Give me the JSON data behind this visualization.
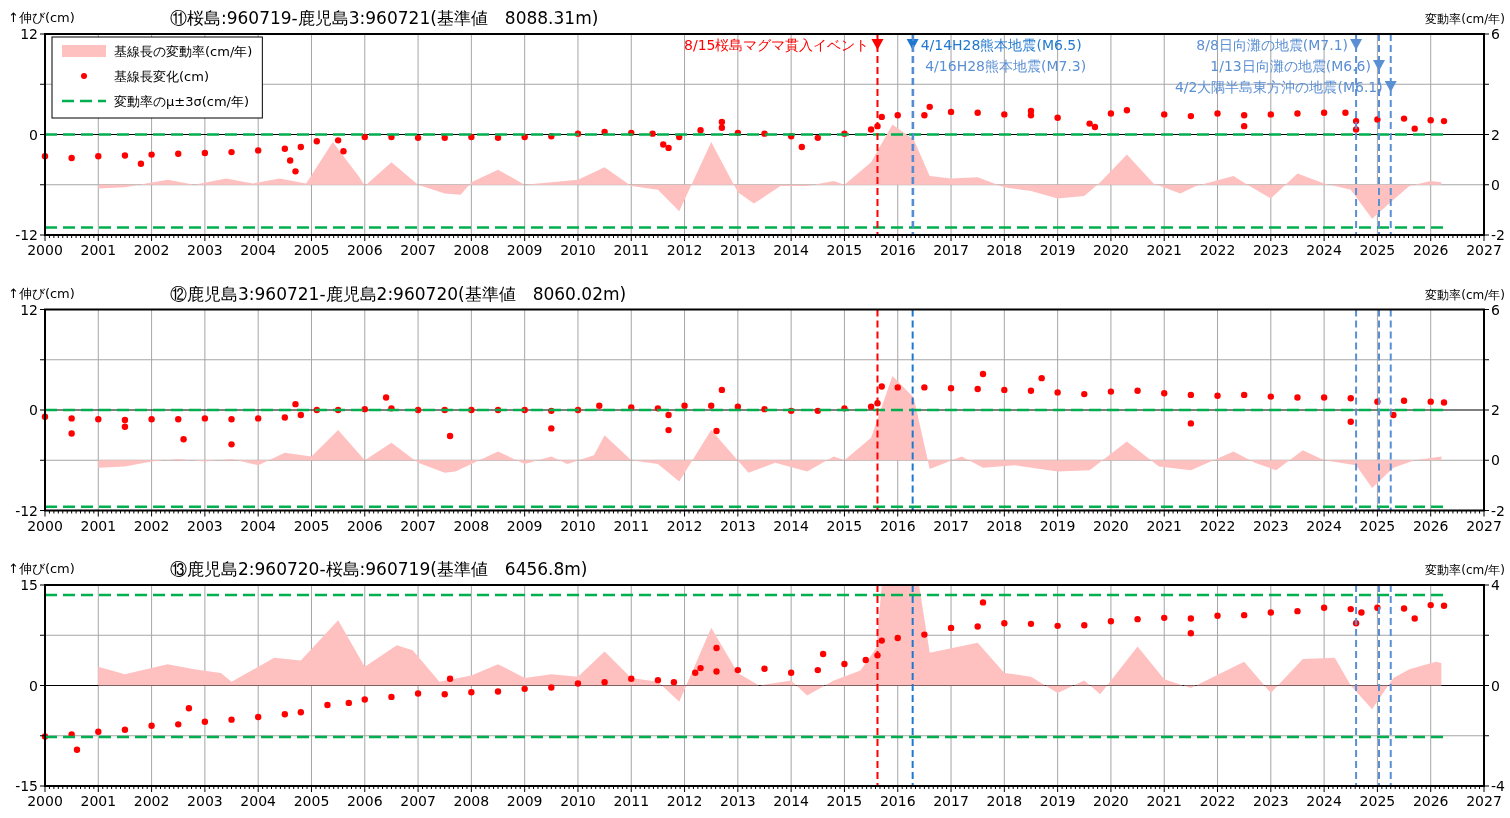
{
  "chart_data": [
    {
      "type": "scatter",
      "title": "⑪桜島:960719-鹿児島3:960721(基準値　8088.31m)",
      "ylabel": "↑伸び(cm)",
      "y2label": "変動率(cm/年)",
      "xlim": [
        2000,
        2027
      ],
      "xticks": [
        2000,
        2001,
        2002,
        2003,
        2004,
        2005,
        2006,
        2007,
        2008,
        2009,
        2010,
        2011,
        2012,
        2013,
        2014,
        2015,
        2016,
        2017,
        2018,
        2019,
        2020,
        2021,
        2022,
        2023,
        2024,
        2025,
        2026,
        2027
      ],
      "ylim": [
        -12,
        12
      ],
      "yticks": [
        -12,
        {
          "value": -6,
          "label": null
        },
        0,
        {
          "value": 6,
          "label": null
        },
        12
      ],
      "y2lim": [
        -2,
        6
      ],
      "y2ticks": [
        -2,
        0,
        2,
        {
          "value": 4,
          "label": null
        },
        6
      ],
      "grid": true,
      "legend": "top left",
      "series": [
        {
          "name": "基線長の変動率(cm/年)",
          "type": "area",
          "axis": "y2",
          "color": "#ffc0c0",
          "x": [
            2001.0,
            2001.5,
            2002.3,
            2002.8,
            2003.4,
            2003.9,
            2004.4,
            2004.9,
            2005.4,
            2005.9,
            2006.0,
            2006.5,
            2007.0,
            2007.5,
            2007.8,
            2008.0,
            2008.5,
            2009.0,
            2009.5,
            2010.0,
            2010.5,
            2011.0,
            2011.5,
            2011.9,
            2012.5,
            2013.0,
            2013.3,
            2013.8,
            2014.3,
            2014.8,
            2015.0,
            2015.5,
            2015.9,
            2016.3,
            2016.6,
            2017.0,
            2017.5,
            2018.0,
            2018.5,
            2019.0,
            2019.5,
            2019.8,
            2020.3,
            2020.8,
            2021.3,
            2021.6,
            2022.3,
            2022.6,
            2023.0,
            2023.5,
            2024.0,
            2024.5,
            2024.9,
            2025.3,
            2025.6,
            2026.0,
            2026.2
          ],
          "values": [
            -0.15,
            -0.1,
            0.2,
            0.0,
            0.25,
            0.05,
            0.25,
            0.05,
            1.7,
            0.3,
            -0.05,
            0.9,
            0.0,
            -0.35,
            -0.4,
            0.1,
            0.6,
            0.0,
            0.1,
            0.2,
            0.7,
            -0.05,
            -0.2,
            -1.05,
            1.7,
            -0.3,
            -0.75,
            -0.05,
            -0.05,
            0.15,
            0.0,
            0.9,
            2.4,
            1.8,
            0.35,
            0.25,
            0.3,
            -0.1,
            -0.25,
            -0.55,
            -0.45,
            0.1,
            1.2,
            0.05,
            -0.35,
            -0.05,
            0.35,
            -0.05,
            -0.55,
            0.45,
            0.05,
            -0.2,
            -1.35,
            -0.6,
            -0.05,
            0.15,
            0.1
          ]
        },
        {
          "name": "基線長変化(cm)",
          "marker": "circle",
          "color": "#ff0000",
          "x": [
            2000.0,
            2000.5,
            2001.0,
            2001.5,
            2002.0,
            2002.5,
            2003.0,
            2003.5,
            2004.0,
            2004.5,
            2004.8,
            2005.1,
            2005.5,
            2006.0,
            2006.5,
            2007.0,
            2007.5,
            2008.0,
            2008.5,
            2009.0,
            2009.5,
            2010.0,
            2010.5,
            2011.0,
            2011.4,
            2011.6,
            2011.9,
            2012.3,
            2012.7,
            2013.0,
            2013.5,
            2014.0,
            2014.5,
            2015.0,
            2015.5,
            2015.62,
            2015.7,
            2016.0,
            2016.5,
            2017.0,
            2017.5,
            2018.0,
            2018.5,
            2019.0,
            2019.6,
            2020.0,
            2020.3,
            2021.0,
            2021.5,
            2022.0,
            2022.5,
            2023.0,
            2023.5,
            2024.0,
            2024.4,
            2024.6,
            2025.0,
            2025.5,
            2026.0,
            2026.25,
            2001.8,
            2004.7,
            2004.6,
            2005.6,
            2011.7,
            2012.7,
            2014.2,
            2016.6,
            2018.5,
            2019.7,
            2022.5,
            2024.6,
            2025.7
          ],
          "values": [
            -2.6,
            -2.8,
            -2.6,
            -2.5,
            -2.4,
            -2.3,
            -2.2,
            -2.1,
            -1.9,
            -1.7,
            -1.5,
            -0.8,
            -0.7,
            -0.3,
            -0.3,
            -0.4,
            -0.4,
            -0.3,
            -0.4,
            -0.3,
            -0.2,
            0.1,
            0.3,
            0.2,
            0.1,
            -1.2,
            -0.3,
            0.5,
            0.8,
            0.2,
            0.1,
            -0.2,
            -0.4,
            0.1,
            0.6,
            1.0,
            2.1,
            2.3,
            2.3,
            2.7,
            2.6,
            2.4,
            2.3,
            2.0,
            1.3,
            2.5,
            2.9,
            2.4,
            2.2,
            2.5,
            2.3,
            2.4,
            2.5,
            2.6,
            2.6,
            1.6,
            1.8,
            1.9,
            1.7,
            1.6,
            -3.5,
            -4.4,
            -3.1,
            -2.0,
            -1.6,
            1.5,
            -1.5,
            3.3,
            2.8,
            0.9,
            1.0,
            0.6,
            0.7
          ]
        },
        {
          "name": "変動率のμ±3σ(cm/年)",
          "type": "line",
          "axis": "y2",
          "line_style": "dashed",
          "color": "#00b050",
          "x": [
            2000,
            2026.25
          ],
          "values": [
            2.0,
            2.0
          ]
        },
        {
          "type": "line",
          "axis": "y2",
          "line_style": "dashed",
          "color": "#00b050",
          "x": [
            2000,
            2026.25
          ],
          "values": [
            -1.7,
            -1.7
          ]
        }
      ],
      "ref_lines": [
        {
          "axis": "x",
          "value": 2015.62,
          "label": "8/15桜島マグマ貫入イベント",
          "color": "#ff0000",
          "line_style": "dashed"
        },
        {
          "axis": "x",
          "value": 2016.28,
          "label": "4/14H28熊本地震(M6.5)",
          "color": "#1f78d0",
          "line_style": "dashed"
        },
        {
          "axis": "x",
          "value": 2016.29,
          "label": "4/16H28熊本地震(M7.3)",
          "color": "#5b8fd4",
          "line_style": "dashed"
        },
        {
          "axis": "x",
          "value": 2024.6,
          "label": "8/8日向灘の地震(M7.1)",
          "color": "#5b8fd4",
          "line_style": "dashed"
        },
        {
          "axis": "x",
          "value": 2025.03,
          "label": "1/13日向灘の地震(M6.6)",
          "color": "#5b8fd4",
          "line_style": "dashed"
        },
        {
          "axis": "x",
          "value": 2025.25,
          "label": "4/2大隅半島東方沖の地震(M6.1)",
          "color": "#5b8fd4",
          "line_style": "dashed"
        }
      ]
    },
    {
      "type": "scatter",
      "title": "⑫鹿児島3:960721-鹿児島2:960720(基準値　8060.02m)",
      "ylabel": "↑伸び(cm)",
      "y2label": "変動率(cm/年)",
      "xlim": [
        2000,
        2027
      ],
      "xticks": [
        2000,
        2001,
        2002,
        2003,
        2004,
        2005,
        2006,
        2007,
        2008,
        2009,
        2010,
        2011,
        2012,
        2013,
        2014,
        2015,
        2016,
        2017,
        2018,
        2019,
        2020,
        2021,
        2022,
        2023,
        2024,
        2025,
        2026,
        2027
      ],
      "ylim": [
        -12,
        12
      ],
      "yticks": [
        -12,
        {
          "value": -6,
          "label": null
        },
        0,
        {
          "value": 6,
          "label": null
        },
        12
      ],
      "y2lim": [
        -2,
        6
      ],
      "y2ticks": [
        -2,
        0,
        2,
        {
          "value": 4,
          "label": null
        },
        6
      ],
      "grid": true,
      "series": [
        {
          "type": "area",
          "axis": "y2",
          "color": "#ffc0c0",
          "x": [
            2001.0,
            2001.5,
            2002.0,
            2002.5,
            2003.0,
            2003.5,
            2004.0,
            2004.5,
            2005.0,
            2005.5,
            2006.0,
            2006.5,
            2007.0,
            2007.5,
            2007.7,
            2008.5,
            2009.0,
            2009.5,
            2009.8,
            2010.3,
            2010.5,
            2011.0,
            2011.5,
            2011.9,
            2012.5,
            2013.2,
            2013.7,
            2014.3,
            2014.8,
            2015.0,
            2015.5,
            2015.9,
            2016.3,
            2016.6,
            2017.2,
            2017.6,
            2018.2,
            2019.0,
            2019.6,
            2020.3,
            2020.9,
            2021.5,
            2022.3,
            2022.7,
            2023.1,
            2023.6,
            2024.0,
            2024.6,
            2024.9,
            2025.3,
            2025.7,
            2026.2
          ],
          "values": [
            -0.3,
            -0.25,
            -0.05,
            0.05,
            -0.05,
            0.05,
            -0.2,
            0.3,
            0.15,
            1.2,
            0.0,
            0.7,
            -0.1,
            -0.5,
            -0.45,
            0.35,
            -0.15,
            0.15,
            -0.15,
            0.2,
            1.0,
            0.0,
            -0.15,
            -0.85,
            1.2,
            -0.5,
            -0.1,
            -0.45,
            0.15,
            0.0,
            0.9,
            3.35,
            2.5,
            -0.35,
            0.15,
            -0.3,
            -0.2,
            -0.45,
            -0.4,
            0.75,
            -0.25,
            -0.4,
            0.35,
            -0.1,
            -0.4,
            0.4,
            0.0,
            -0.2,
            -1.1,
            -0.3,
            0.0,
            0.15
          ]
        },
        {
          "marker": "circle",
          "color": "#ff0000",
          "x": [
            2000.0,
            2000.5,
            2001.0,
            2001.5,
            2002.0,
            2002.5,
            2003.0,
            2003.5,
            2004.0,
            2004.5,
            2004.8,
            2005.1,
            2005.5,
            2006.0,
            2006.5,
            2007.0,
            2007.5,
            2008.0,
            2008.5,
            2009.0,
            2009.5,
            2010.0,
            2010.4,
            2011.0,
            2011.5,
            2011.7,
            2012.0,
            2012.5,
            2013.0,
            2013.5,
            2014.0,
            2014.5,
            2015.0,
            2015.5,
            2015.62,
            2015.7,
            2016.0,
            2016.5,
            2017.0,
            2017.5,
            2018.0,
            2018.5,
            2019.0,
            2019.5,
            2020.0,
            2020.5,
            2021.0,
            2021.5,
            2022.0,
            2022.5,
            2023.0,
            2023.5,
            2024.0,
            2024.5,
            2025.0,
            2025.5,
            2026.0,
            2026.25,
            2000.5,
            2001.5,
            2002.6,
            2003.5,
            2004.7,
            2006.4,
            2007.6,
            2009.5,
            2011.7,
            2012.7,
            2012.6,
            2017.6,
            2018.7,
            2021.5,
            2024.5,
            2025.3
          ],
          "values": [
            -0.8,
            -1.0,
            -1.1,
            -1.2,
            -1.1,
            -1.1,
            -1.0,
            -1.1,
            -1.0,
            -0.9,
            -0.6,
            0.0,
            0.0,
            0.1,
            0.2,
            0.0,
            0.0,
            0.0,
            0.0,
            0.0,
            -0.1,
            0.0,
            0.5,
            0.3,
            0.2,
            -0.6,
            0.5,
            0.5,
            0.4,
            0.1,
            -0.1,
            -0.1,
            0.2,
            0.4,
            0.8,
            2.8,
            2.7,
            2.7,
            2.6,
            2.5,
            2.4,
            2.3,
            2.1,
            1.9,
            2.2,
            2.3,
            2.0,
            1.8,
            1.7,
            1.8,
            1.6,
            1.5,
            1.5,
            1.4,
            1.0,
            1.1,
            1.0,
            0.9,
            -2.8,
            -2.0,
            -3.5,
            -4.1,
            0.7,
            1.5,
            -3.1,
            -2.2,
            -2.4,
            2.4,
            -2.5,
            4.3,
            3.8,
            -1.6,
            -1.4,
            -0.6
          ]
        },
        {
          "type": "line",
          "axis": "y2",
          "line_style": "dashed",
          "color": "#00b050",
          "x": [
            2000,
            2026.25
          ],
          "values": [
            2.0,
            2.0
          ]
        },
        {
          "type": "line",
          "axis": "y2",
          "line_style": "dashed",
          "color": "#00b050",
          "x": [
            2000,
            2026.25
          ],
          "values": [
            -1.85,
            -1.85
          ]
        }
      ],
      "ref_lines": [
        {
          "axis": "x",
          "value": 2015.62,
          "color": "#ff0000",
          "line_style": "dashed"
        },
        {
          "axis": "x",
          "value": 2016.28,
          "color": "#1f78d0",
          "line_style": "dashed"
        },
        {
          "axis": "x",
          "value": 2024.6,
          "color": "#5b8fd4",
          "line_style": "dashed"
        },
        {
          "axis": "x",
          "value": 2025.03,
          "color": "#5b8fd4",
          "line_style": "dashed"
        },
        {
          "axis": "x",
          "value": 2025.25,
          "color": "#5b8fd4",
          "line_style": "dashed"
        }
      ]
    },
    {
      "type": "scatter",
      "title": "⑬鹿児島2:960720-桜島:960719(基準値　6456.8m)",
      "ylabel": "↑伸び(cm)",
      "y2label": "変動率(cm/年)",
      "xlim": [
        2000,
        2027
      ],
      "xticks": [
        2000,
        2001,
        2002,
        2003,
        2004,
        2005,
        2006,
        2007,
        2008,
        2009,
        2010,
        2011,
        2012,
        2013,
        2014,
        2015,
        2016,
        2017,
        2018,
        2019,
        2020,
        2021,
        2022,
        2023,
        2024,
        2025,
        2026,
        2027
      ],
      "ylim": [
        -15,
        15
      ],
      "yticks": [
        -15,
        {
          "value": -7.5,
          "label": null
        },
        0,
        {
          "value": 7.5,
          "label": null
        },
        15
      ],
      "y2lim": [
        -4,
        4
      ],
      "y2ticks": [
        -4,
        {
          "value": -2,
          "label": null
        },
        0,
        {
          "value": 2,
          "label": null
        },
        4
      ],
      "grid": true,
      "series": [
        {
          "type": "area",
          "axis": "y2",
          "color": "#ffc0c0",
          "x": [
            2001.0,
            2001.5,
            2002.3,
            2002.8,
            2003.3,
            2003.5,
            2004.3,
            2004.8,
            2005.5,
            2006.0,
            2006.6,
            2006.9,
            2007.4,
            2008.0,
            2008.5,
            2009.0,
            2009.5,
            2010.0,
            2010.5,
            2011.0,
            2011.5,
            2011.9,
            2012.5,
            2013.0,
            2013.4,
            2014.0,
            2014.3,
            2014.8,
            2015.3,
            2015.6,
            2015.7,
            2016.4,
            2016.6,
            2017.5,
            2018.0,
            2018.5,
            2019.0,
            2019.5,
            2019.8,
            2020.5,
            2021.0,
            2021.5,
            2022.5,
            2023.0,
            2023.6,
            2024.2,
            2024.5,
            2024.9,
            2025.3,
            2025.6,
            2026.1,
            2026.2
          ],
          "values": [
            0.75,
            0.45,
            0.85,
            0.65,
            0.5,
            0.15,
            1.1,
            1.0,
            2.6,
            0.75,
            1.6,
            1.4,
            0.15,
            0.4,
            0.85,
            0.3,
            0.45,
            0.35,
            1.35,
            0.3,
            0.15,
            -0.65,
            2.3,
            0.5,
            0.0,
            0.2,
            -0.4,
            0.2,
            0.6,
            1.5,
            4.0,
            4.0,
            1.3,
            1.7,
            0.5,
            0.35,
            -0.3,
            0.2,
            -0.35,
            1.55,
            0.25,
            -0.1,
            0.95,
            -0.3,
            1.05,
            1.1,
            0.0,
            -0.95,
            0.3,
            0.65,
            0.95,
            0.9
          ]
        },
        {
          "marker": "circle",
          "color": "#ff0000",
          "x": [
            2000,
            2000.5,
            2001,
            2001.5,
            2002,
            2002.5,
            2003,
            2003.5,
            2004,
            2004.5,
            2004.8,
            2005.3,
            2005.7,
            2006,
            2006.5,
            2007,
            2007.5,
            2008,
            2008.5,
            2009,
            2009.5,
            2010,
            2010.5,
            2011,
            2011.5,
            2011.8,
            2012.2,
            2012.6,
            2013,
            2013.5,
            2014,
            2014.5,
            2015,
            2015.4,
            2015.62,
            2015.7,
            2016,
            2016.5,
            2017,
            2017.5,
            2018,
            2018.5,
            2019,
            2019.5,
            2020,
            2020.5,
            2021,
            2021.5,
            2022,
            2022.5,
            2023,
            2023.5,
            2024,
            2024.5,
            2024.7,
            2025,
            2025.5,
            2026,
            2026.25,
            2000.6,
            2002.7,
            2007.6,
            2012.6,
            2012.3,
            2014.6,
            2017.6,
            2021.5,
            2024.6,
            2025.7
          ],
          "values": [
            -7.6,
            -7.3,
            -6.9,
            -6.6,
            -6.0,
            -5.8,
            -5.4,
            -5.1,
            -4.7,
            -4.3,
            -4.0,
            -2.9,
            -2.6,
            -2.1,
            -1.7,
            -1.2,
            -1.3,
            -1.0,
            -0.9,
            -0.5,
            -0.3,
            0.3,
            0.5,
            1.0,
            0.8,
            0.5,
            1.9,
            2.1,
            2.3,
            2.5,
            1.9,
            2.3,
            3.2,
            3.8,
            4.5,
            6.7,
            7.1,
            7.6,
            8.6,
            8.8,
            9.3,
            9.2,
            8.9,
            9.0,
            9.6,
            9.9,
            10.1,
            10.0,
            10.4,
            10.5,
            10.9,
            11.1,
            11.6,
            11.4,
            10.9,
            11.6,
            11.5,
            12.0,
            11.9,
            -9.6,
            -3.4,
            1.0,
            5.6,
            2.6,
            4.7,
            12.4,
            7.8,
            9.3,
            10.0
          ]
        },
        {
          "type": "line",
          "axis": "y2",
          "line_style": "dashed",
          "color": "#00b050",
          "x": [
            2000,
            2026.25
          ],
          "values": [
            3.6,
            3.6
          ]
        },
        {
          "type": "line",
          "axis": "y2",
          "line_style": "dashed",
          "color": "#00b050",
          "x": [
            2000,
            2026.25
          ],
          "values": [
            -2.05,
            -2.05
          ]
        }
      ],
      "ref_lines": [
        {
          "axis": "x",
          "value": 2015.62,
          "color": "#ff0000",
          "line_style": "dashed"
        },
        {
          "axis": "x",
          "value": 2016.28,
          "color": "#1f78d0",
          "line_style": "dashed"
        },
        {
          "axis": "x",
          "value": 2024.6,
          "color": "#5b8fd4",
          "line_style": "dashed"
        },
        {
          "axis": "x",
          "value": 2025.03,
          "color": "#5b8fd4",
          "line_style": "dashed"
        },
        {
          "axis": "x",
          "value": 2025.25,
          "color": "#5b8fd4",
          "line_style": "dashed"
        }
      ]
    }
  ]
}
